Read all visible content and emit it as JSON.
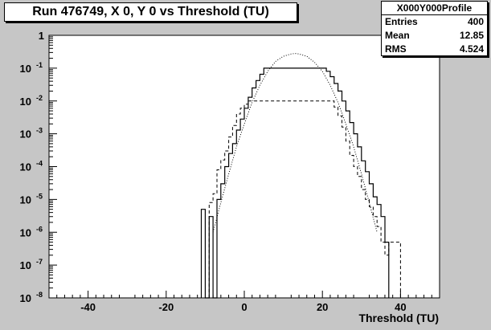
{
  "chart_data": {
    "type": "histogram",
    "title": "Run 476749, X 0, Y 0 vs Threshold (TU)",
    "xlabel": "Threshold (TU)",
    "ylabel": "",
    "xlim": [
      -50,
      50
    ],
    "ylim": [
      1e-08,
      1
    ],
    "ylog": true,
    "grid": false,
    "bin_width": 1,
    "x_ticks": [
      -40,
      -20,
      0,
      20,
      40
    ],
    "x_tick_labels": [
      "-40",
      "-20",
      "0",
      "20",
      "40"
    ],
    "y_ticks": [
      1e-08,
      1e-07,
      1e-06,
      1e-05,
      0.0001,
      0.001,
      0.01,
      0.1,
      1
    ],
    "y_tick_labels": [
      {
        "base": "10",
        "exp": "-8"
      },
      {
        "base": "10",
        "exp": "-7"
      },
      {
        "base": "10",
        "exp": "-6"
      },
      {
        "base": "10",
        "exp": "-5"
      },
      {
        "base": "10",
        "exp": "-4"
      },
      {
        "base": "10",
        "exp": "-3"
      },
      {
        "base": "10",
        "exp": "-2"
      },
      {
        "base": "10",
        "exp": "-1"
      },
      {
        "base": "1",
        "exp": ""
      }
    ],
    "stats": {
      "name": "X000Y000Profile",
      "rows": [
        {
          "label": "Entries",
          "value": "400"
        },
        {
          "label": "Mean",
          "value": "12.85"
        },
        {
          "label": "RMS",
          "value": "4.524"
        }
      ]
    },
    "series": [
      {
        "style": "solid",
        "bin_lows": [
          -11,
          -10,
          -9,
          -8,
          -7,
          -6,
          -5,
          -4,
          -3,
          -2,
          -1,
          0,
          1,
          2,
          3,
          4,
          5,
          6,
          7,
          8,
          9,
          10,
          11,
          12,
          13,
          14,
          15,
          16,
          17,
          18,
          19,
          20,
          21,
          22,
          23,
          24,
          25,
          26,
          27,
          28,
          29,
          30,
          31,
          32,
          33,
          34,
          35,
          36
        ],
        "values": [
          5e-06,
          1e-08,
          3e-06,
          1e-08,
          1e-05,
          3e-05,
          0.0001,
          0.00025,
          0.0005,
          0.0013,
          0.0028,
          0.006,
          0.013,
          0.025,
          0.042,
          0.065,
          0.1,
          0.1,
          0.1,
          0.1,
          0.1,
          0.1,
          0.1,
          0.1,
          0.1,
          0.1,
          0.1,
          0.1,
          0.1,
          0.1,
          0.1,
          0.1,
          0.08,
          0.055,
          0.034,
          0.02,
          0.01,
          0.005,
          0.0022,
          0.001,
          0.0004,
          0.00015,
          7e-05,
          3e-05,
          1.2e-05,
          7e-06,
          3e-06,
          5e-07
        ]
      },
      {
        "style": "dashed",
        "bin_lows": [
          -9,
          -8,
          -7,
          -6,
          -5,
          -4,
          -3,
          -2,
          -1,
          0,
          1,
          2,
          3,
          4,
          5,
          6,
          7,
          8,
          9,
          10,
          11,
          12,
          13,
          14,
          15,
          16,
          17,
          18,
          19,
          20,
          21,
          22,
          23,
          24,
          25,
          26,
          27,
          28,
          29,
          30,
          31,
          32,
          33,
          34,
          35,
          36,
          37,
          38,
          39,
          40
        ],
        "values": [
          8e-06,
          1.5e-05,
          8e-05,
          0.00016,
          0.0003,
          0.0008,
          0.0018,
          0.004,
          0.006,
          0.008,
          0.01,
          0.01,
          0.01,
          0.01,
          0.01,
          0.01,
          0.01,
          0.01,
          0.01,
          0.01,
          0.01,
          0.01,
          0.01,
          0.01,
          0.01,
          0.01,
          0.01,
          0.01,
          0.01,
          0.01,
          0.01,
          0.01,
          0.0065,
          0.0035,
          0.0016,
          0.0006,
          0.00022,
          0.0001,
          5e-05,
          2e-05,
          1e-05,
          6e-06,
          3e-06,
          1.5e-06,
          5e-07,
          2e-07,
          5e-07,
          5e-07,
          5e-07,
          1e-08
        ]
      },
      {
        "style": "dotted",
        "curve_x": [
          -8,
          -6,
          -4,
          -2,
          0,
          2,
          4,
          6,
          8,
          10,
          12,
          13,
          14,
          16,
          18,
          20,
          22,
          24,
          26,
          28,
          30,
          32,
          34
        ],
        "curve_y": [
          1e-06,
          8e-06,
          6e-05,
          0.0004,
          0.002,
          0.009,
          0.03,
          0.08,
          0.16,
          0.23,
          0.27,
          0.28,
          0.27,
          0.23,
          0.15,
          0.08,
          0.03,
          0.009,
          0.002,
          0.0004,
          6e-05,
          8e-06,
          1e-06
        ]
      }
    ]
  }
}
